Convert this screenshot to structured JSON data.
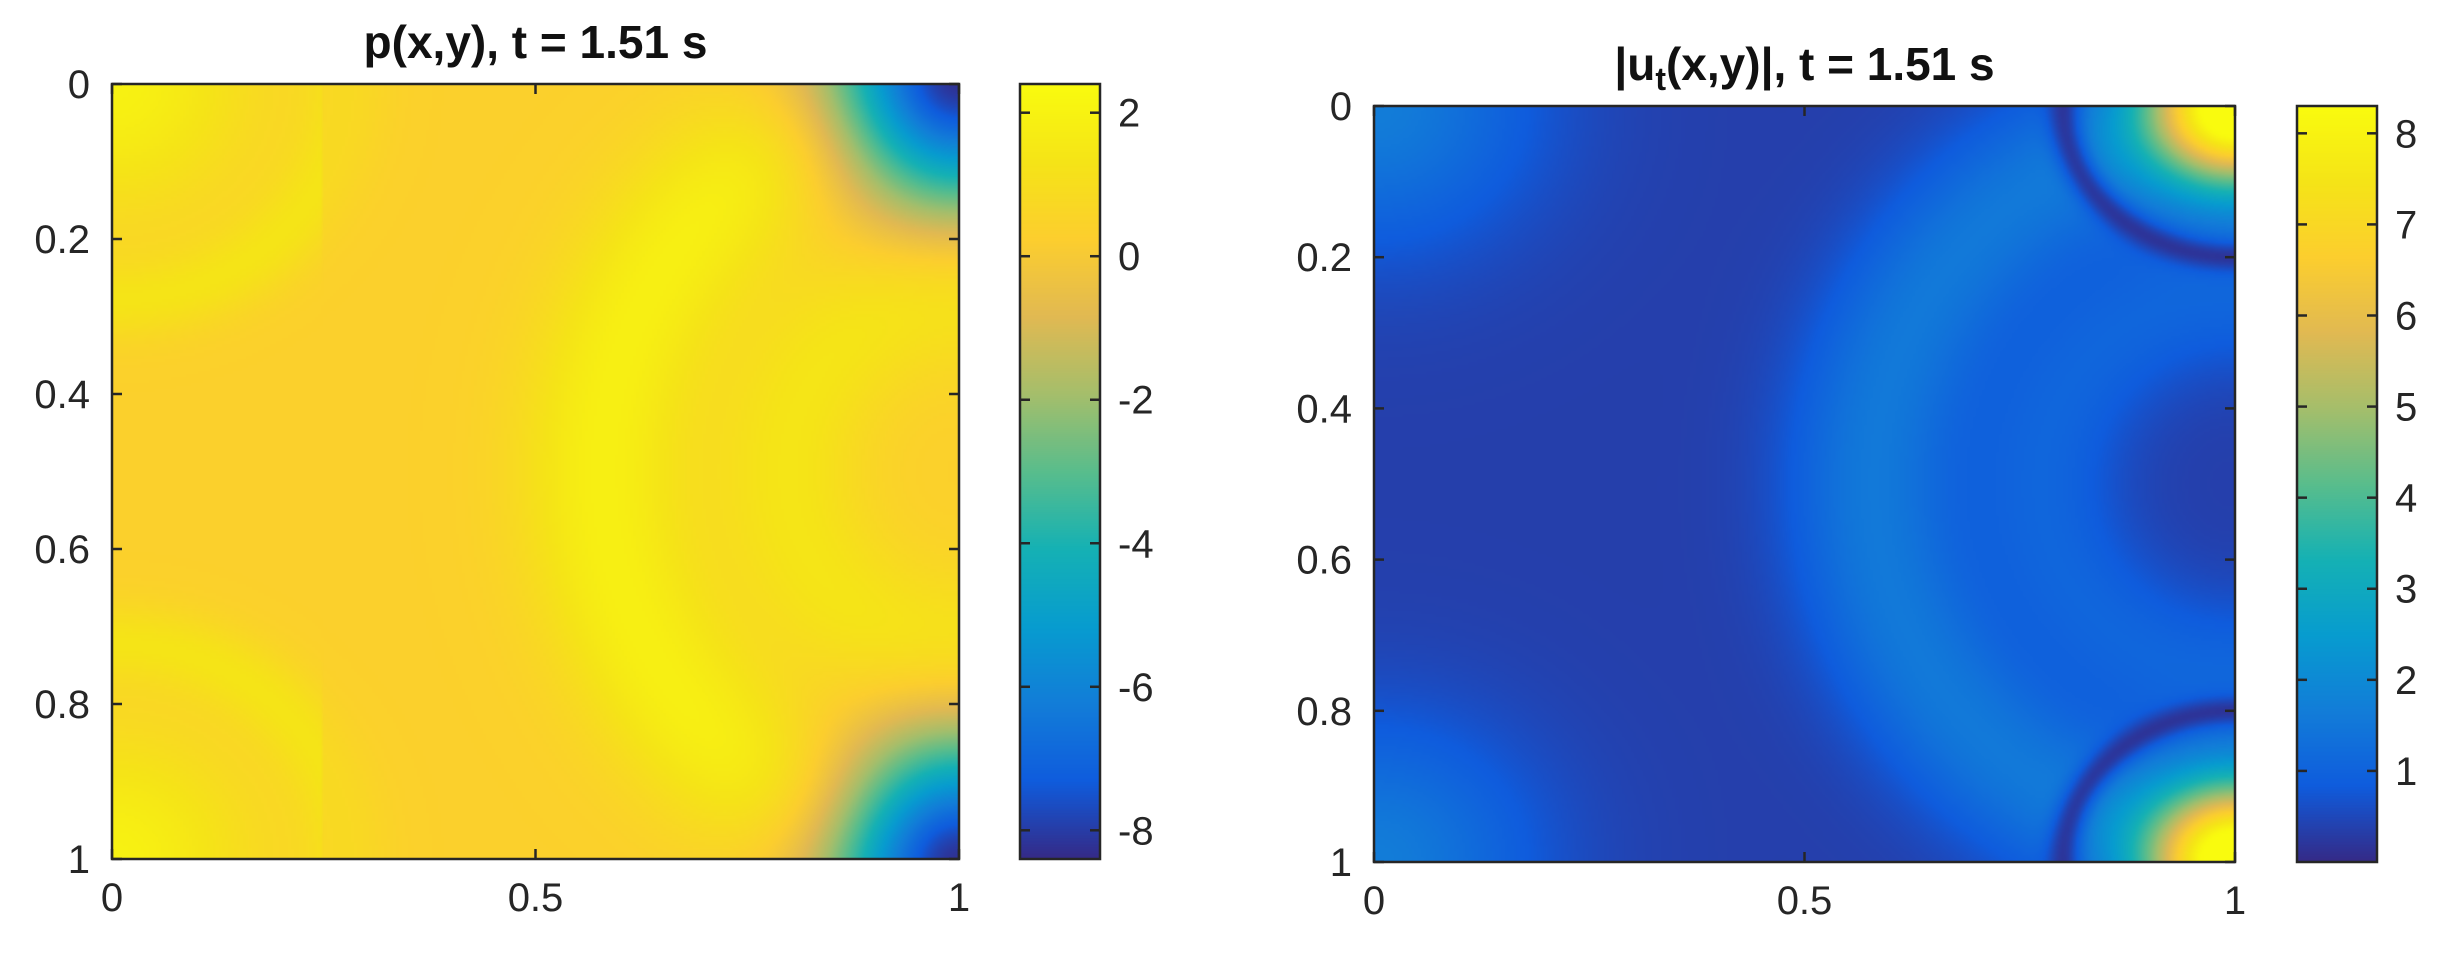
{
  "chart_data": [
    {
      "type": "heatmap",
      "title": "p(x,y), t = 1.51 s",
      "title_parts": [
        {
          "text": "p(x,y), t = 1.51 s",
          "sub": false
        }
      ],
      "xlim": [
        0,
        1
      ],
      "ylim": [
        0,
        1
      ],
      "y_reversed": true,
      "xticks": [
        "0",
        "0.5",
        "1"
      ],
      "xtick_values": [
        0,
        0.5,
        1
      ],
      "yticks": [
        "0",
        "0.2",
        "0.4",
        "0.6",
        "0.8",
        "1"
      ],
      "ytick_values": [
        0,
        0.2,
        0.4,
        0.6,
        0.8,
        1
      ],
      "colorbar": {
        "range": [
          -8.4,
          2.4
        ],
        "ticks": [
          "2",
          "0",
          "-2",
          "-4",
          "-6",
          "-8"
        ],
        "tick_values": [
          2,
          0,
          -2,
          -4,
          -6,
          -8
        ]
      },
      "colormap": "parula",
      "field": "p"
    },
    {
      "type": "heatmap",
      "title": "|ut(x,y)|, t = 1.51 s",
      "title_parts": [
        {
          "text": "|u",
          "sub": false
        },
        {
          "text": "t",
          "sub": true
        },
        {
          "text": "(x,y)|, t = 1.51 s",
          "sub": false
        }
      ],
      "xlim": [
        0,
        1
      ],
      "ylim": [
        0,
        1
      ],
      "y_reversed": true,
      "xticks": [
        "0",
        "0.5",
        "1"
      ],
      "xtick_values": [
        0,
        0.5,
        1
      ],
      "yticks": [
        "0",
        "0.2",
        "0.4",
        "0.6",
        "0.8",
        "1"
      ],
      "ytick_values": [
        0,
        0.2,
        0.4,
        0.6,
        0.8,
        1
      ],
      "colorbar": {
        "range": [
          0,
          8.3
        ],
        "ticks": [
          "8",
          "7",
          "6",
          "5",
          "4",
          "3",
          "2",
          "1"
        ],
        "tick_values": [
          8,
          7,
          6,
          5,
          4,
          3,
          2,
          1
        ]
      },
      "colormap": "parula",
      "field": "ut"
    }
  ]
}
